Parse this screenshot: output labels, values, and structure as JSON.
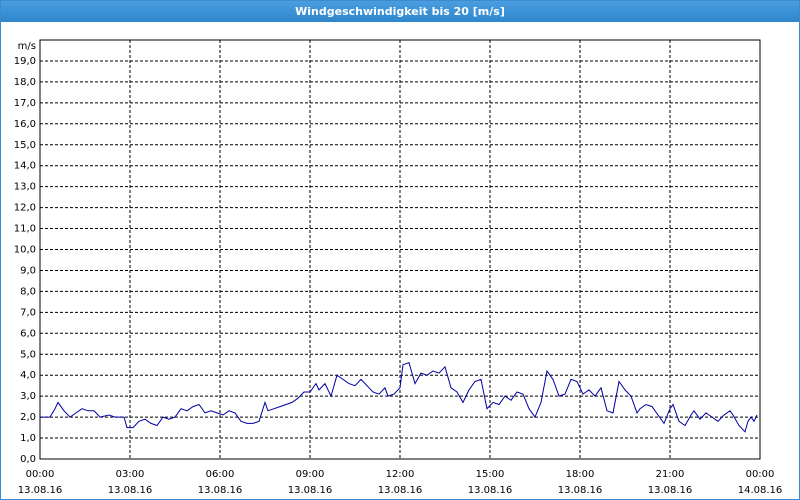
{
  "chart_data": {
    "type": "line",
    "title": "Windgeschwindigkeit bis 20 [m/s]",
    "y_label": "m/s",
    "xlim": [
      0,
      24
    ],
    "ylim": [
      0,
      20
    ],
    "xticks": [
      {
        "value": 0,
        "label": "00:00"
      },
      {
        "value": 3,
        "label": "03:00"
      },
      {
        "value": 6,
        "label": "06:00"
      },
      {
        "value": 9,
        "label": "09:00"
      },
      {
        "value": 12,
        "label": "12:00"
      },
      {
        "value": 15,
        "label": "15:00"
      },
      {
        "value": 18,
        "label": "18:00"
      },
      {
        "value": 21,
        "label": "21:00"
      },
      {
        "value": 24,
        "label": "00:00"
      }
    ],
    "xtick_dates": [
      "13.08.16",
      "13.08.16",
      "13.08.16",
      "13.08.16",
      "13.08.16",
      "13.08.16",
      "13.08.16",
      "13.08.16",
      "14.08.16"
    ],
    "yticks": [
      {
        "value": 0,
        "label": "0,0"
      },
      {
        "value": 1,
        "label": "1,0"
      },
      {
        "value": 2,
        "label": "2,0"
      },
      {
        "value": 3,
        "label": "3,0"
      },
      {
        "value": 4,
        "label": "4,0"
      },
      {
        "value": 5,
        "label": "5,0"
      },
      {
        "value": 6,
        "label": "6,0"
      },
      {
        "value": 7,
        "label": "7,0"
      },
      {
        "value": 8,
        "label": "8,0"
      },
      {
        "value": 9,
        "label": "9,0"
      },
      {
        "value": 10,
        "label": "10,0"
      },
      {
        "value": 11,
        "label": "11,0"
      },
      {
        "value": 12,
        "label": "12,0"
      },
      {
        "value": 13,
        "label": "13,0"
      },
      {
        "value": 14,
        "label": "14,0"
      },
      {
        "value": 15,
        "label": "15,0"
      },
      {
        "value": 16,
        "label": "16,0"
      },
      {
        "value": 17,
        "label": "17,0"
      },
      {
        "value": 18,
        "label": "18,0"
      },
      {
        "value": 19,
        "label": "19,0"
      }
    ],
    "grid": true,
    "x": [
      0.0,
      0.33,
      0.5,
      0.6,
      0.8,
      1.0,
      1.2,
      1.4,
      1.6,
      1.8,
      2.0,
      2.3,
      2.5,
      2.8,
      2.9,
      3.1,
      3.3,
      3.5,
      3.7,
      3.9,
      4.1,
      4.3,
      4.5,
      4.7,
      4.9,
      5.1,
      5.3,
      5.5,
      5.7,
      5.9,
      6.1,
      6.3,
      6.5,
      6.7,
      6.9,
      7.1,
      7.3,
      7.5,
      7.6,
      7.8,
      8.0,
      8.2,
      8.4,
      8.6,
      8.8,
      9.0,
      9.2,
      9.3,
      9.5,
      9.7,
      9.9,
      10.1,
      10.3,
      10.5,
      10.7,
      10.9,
      11.1,
      11.3,
      11.5,
      11.6,
      11.8,
      12.0,
      12.1,
      12.3,
      12.5,
      12.7,
      12.9,
      13.1,
      13.3,
      13.5,
      13.7,
      13.9,
      14.1,
      14.3,
      14.5,
      14.7,
      14.9,
      15.1,
      15.3,
      15.5,
      15.7,
      15.9,
      16.1,
      16.3,
      16.5,
      16.7,
      16.9,
      17.1,
      17.3,
      17.5,
      17.7,
      17.9,
      18.1,
      18.3,
      18.5,
      18.7,
      18.9,
      19.1,
      19.3,
      19.5,
      19.7,
      19.9,
      20.0,
      20.2,
      20.4,
      20.6,
      20.8,
      21.0,
      21.1,
      21.3,
      21.5,
      21.7,
      21.8,
      22.0,
      22.2,
      22.4,
      22.6,
      22.8,
      23.0,
      23.1,
      23.3,
      23.5,
      23.6,
      23.7,
      23.8,
      23.9
    ],
    "series": [
      {
        "color": "#0000a0",
        "values": [
          2.0,
          2.0,
          2.4,
          2.7,
          2.3,
          2.0,
          2.2,
          2.4,
          2.3,
          2.3,
          2.0,
          2.1,
          2.0,
          2.0,
          1.5,
          1.5,
          1.8,
          1.9,
          1.7,
          1.6,
          2.0,
          1.9,
          2.0,
          2.4,
          2.3,
          2.5,
          2.6,
          2.2,
          2.3,
          2.2,
          2.1,
          2.3,
          2.2,
          1.8,
          1.7,
          1.7,
          1.8,
          2.7,
          2.3,
          2.4,
          2.5,
          2.6,
          2.7,
          2.9,
          3.2,
          3.2,
          3.6,
          3.3,
          3.6,
          3.0,
          4.0,
          3.8,
          3.6,
          3.5,
          3.8,
          3.5,
          3.2,
          3.1,
          3.4,
          3.0,
          3.1,
          3.4,
          4.5,
          4.6,
          3.6,
          4.1,
          4.0,
          4.2,
          4.1,
          4.4,
          3.4,
          3.2,
          2.7,
          3.3,
          3.7,
          3.8,
          2.4,
          2.7,
          2.6,
          3.0,
          2.8,
          3.2,
          3.1,
          2.4,
          2.0,
          2.7,
          4.2,
          3.8,
          3.0,
          3.1,
          3.8,
          3.7,
          3.1,
          3.3,
          3.0,
          3.4,
          2.3,
          2.2,
          3.7,
          3.3,
          3.0,
          2.2,
          2.4,
          2.6,
          2.5,
          2.1,
          1.7,
          2.4,
          2.6,
          1.8,
          1.6,
          2.1,
          2.3,
          1.9,
          2.2,
          2.0,
          1.8,
          2.1,
          2.3,
          2.1,
          1.6,
          1.3,
          1.8,
          2.0,
          1.8,
          2.1
        ]
      }
    ]
  }
}
